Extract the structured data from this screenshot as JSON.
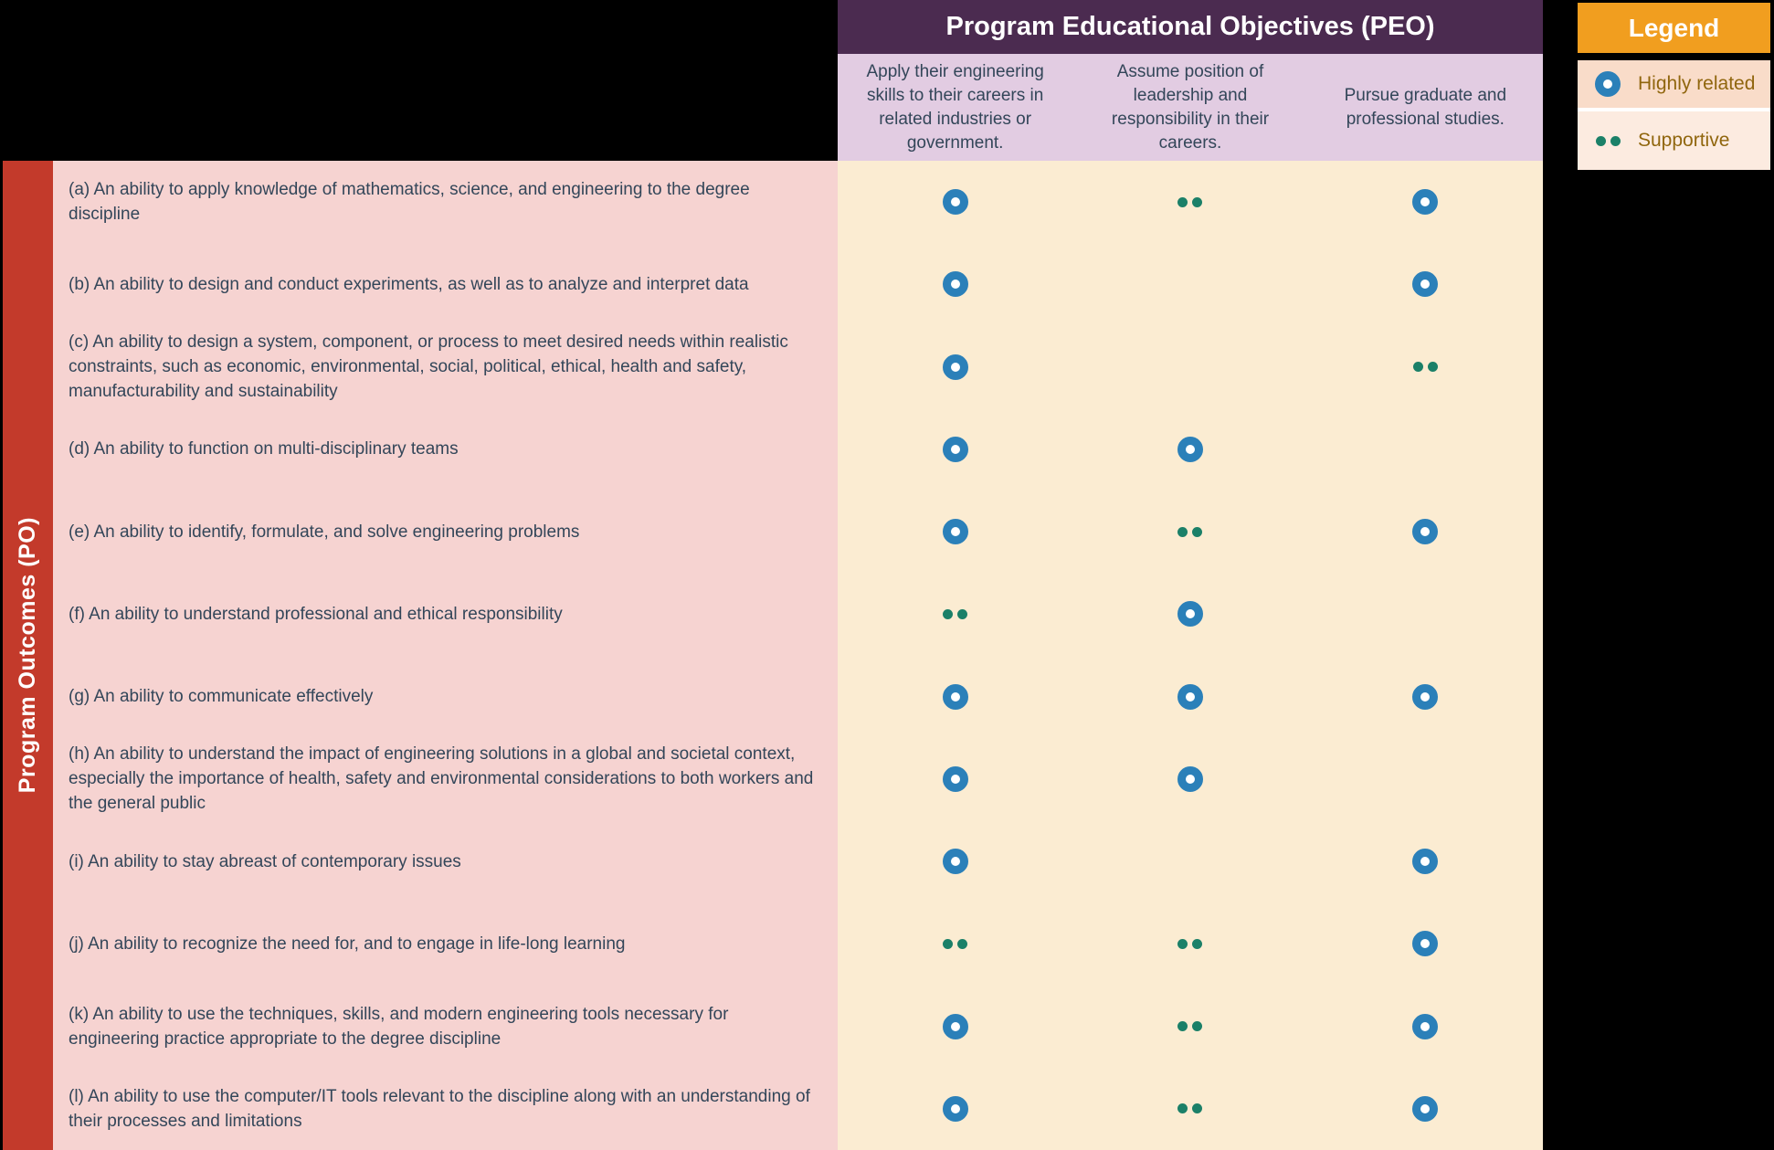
{
  "chart_data": {
    "type": "table",
    "title": "Program Educational Objectives (PEO)",
    "row_axis_title": "Program Outcomes (PO)",
    "columns": [
      "Apply their engineering skills to their careers in related industries or government.",
      "Assume position of leadership and responsibility in their careers.",
      "Pursue graduate and professional studies."
    ],
    "cell_codes": {
      "H": "Highly related",
      "S": "Supportive",
      "": "none"
    },
    "rows": [
      {
        "label": "(a) An ability to apply knowledge of mathematics, science, and engineering to the degree discipline",
        "cells": [
          "H",
          "S",
          "H"
        ]
      },
      {
        "label": "(b) An ability to design and conduct experiments, as well as to analyze and interpret data",
        "cells": [
          "H",
          "",
          "H"
        ]
      },
      {
        "label": "(c) An ability to design a system, component, or process to meet desired needs within realistic constraints, such as economic, environmental, social, political, ethical, health and safety, manufacturability and sustainability",
        "cells": [
          "H",
          "",
          "S"
        ]
      },
      {
        "label": "(d) An ability to function on multi-disciplinary teams",
        "cells": [
          "H",
          "H",
          ""
        ]
      },
      {
        "label": "(e) An ability to identify, formulate, and solve engineering problems",
        "cells": [
          "H",
          "S",
          "H"
        ]
      },
      {
        "label": "(f) An ability to understand professional and ethical responsibility",
        "cells": [
          "S",
          "H",
          ""
        ]
      },
      {
        "label": "(g) An ability to communicate effectively",
        "cells": [
          "H",
          "H",
          "H"
        ]
      },
      {
        "label": "(h) An ability to understand the impact of engineering solutions in a global and societal context, especially the importance of health, safety and environmental considerations to both workers and the general public",
        "cells": [
          "H",
          "H",
          ""
        ]
      },
      {
        "label": "(i) An ability to stay abreast of contemporary issues",
        "cells": [
          "H",
          "",
          "H"
        ]
      },
      {
        "label": "(j) An ability to recognize the need for, and to engage in life-long learning",
        "cells": [
          "S",
          "S",
          "H"
        ]
      },
      {
        "label": "(k) An ability to use the techniques, skills, and modern engineering tools necessary for engineering practice appropriate to the degree discipline",
        "cells": [
          "H",
          "S",
          "H"
        ]
      },
      {
        "label": "(l) An ability to use the computer/IT tools relevant to the discipline along with an understanding of their processes and limitations",
        "cells": [
          "H",
          "S",
          "H"
        ]
      }
    ]
  },
  "legend": {
    "title": "Legend",
    "items": [
      {
        "label": "Highly related",
        "marker": "H"
      },
      {
        "label": "Supportive",
        "marker": "S"
      }
    ]
  },
  "colors": {
    "purple": "#4b2b50",
    "lavender": "#e2cce2",
    "red": "#c33a2b",
    "pink": "#f6d3d1",
    "cream": "#fbecd2",
    "orange": "#f19e1f",
    "peach_dark": "#f9dcc9",
    "peach_light": "#fcebe0",
    "blue": "#2b80b9",
    "green": "#1b8068",
    "text": "#334659",
    "legend_text": "#90660e"
  }
}
